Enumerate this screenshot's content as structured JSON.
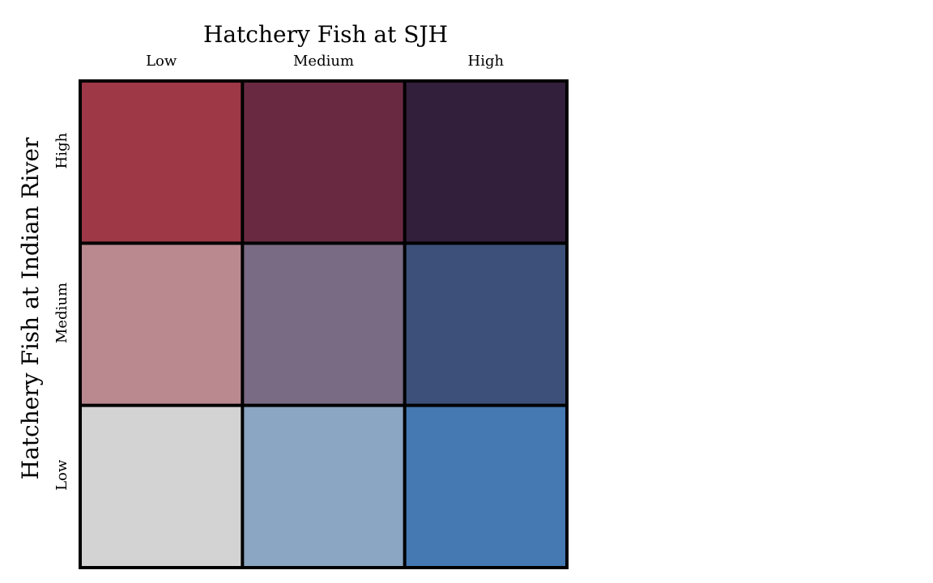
{
  "chart_data": {
    "type": "heatmap",
    "title": "Hatchery Fish at SJH",
    "xlabel": "Hatchery Fish at SJH",
    "ylabel": "Hatchery Fish at Indian River",
    "x_categories": [
      "Low",
      "Medium",
      "High"
    ],
    "y_categories": [
      "Low",
      "Medium",
      "High"
    ],
    "cells": [
      {
        "x": "Low",
        "y": "High",
        "color": "#9e3746"
      },
      {
        "x": "Medium",
        "y": "High",
        "color": "#692a41"
      },
      {
        "x": "High",
        "y": "High",
        "color": "#321f3b"
      },
      {
        "x": "Low",
        "y": "Medium",
        "color": "#ba8990"
      },
      {
        "x": "Medium",
        "y": "Medium",
        "color": "#796b83"
      },
      {
        "x": "High",
        "y": "Medium",
        "color": "#3c5079"
      },
      {
        "x": "Low",
        "y": "Low",
        "color": "#d3d3d3"
      },
      {
        "x": "Medium",
        "y": "Low",
        "color": "#8ba6c3"
      },
      {
        "x": "High",
        "y": "Low",
        "color": "#4479b2"
      }
    ],
    "grid": true,
    "legend": "none"
  }
}
